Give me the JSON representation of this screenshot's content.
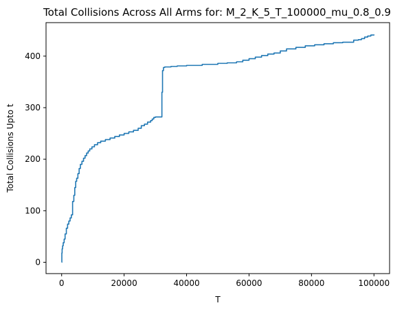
{
  "chart_data": {
    "type": "line",
    "title": "Total Collisions Across All Arms for: M_2_K_5_T_100000_mu_0.8_0.9",
    "xlabel": "T",
    "ylabel": "Total Collisions Upto t",
    "xlim": [
      -5000,
      105000
    ],
    "ylim": [
      -22,
      465
    ],
    "xticks": [
      0,
      20000,
      40000,
      60000,
      80000,
      100000
    ],
    "yticks": [
      0,
      100,
      200,
      300,
      400
    ],
    "grid": false,
    "legend": "none",
    "colors": {
      "line": "#1f77b4"
    },
    "series": [
      {
        "x": [
          0,
          60,
          150,
          300,
          500,
          800,
          1100,
          1500,
          1900,
          2300,
          2700,
          3100,
          3500,
          3900,
          4200,
          4500,
          4800,
          5200,
          5600,
          6000,
          6500,
          7000,
          7500,
          8000,
          8500,
          9000,
          9700,
          10500,
          11500,
          12500,
          14000,
          15500,
          17000,
          18500,
          20000,
          21500,
          23000,
          24500,
          25500,
          26500,
          27500,
          28500,
          29000,
          29500,
          30000,
          31000,
          32000,
          32100,
          32300,
          32600,
          33000,
          35000,
          37000,
          40000,
          45000,
          50000,
          53000,
          56000,
          58000,
          60000,
          62000,
          64000,
          66000,
          68000,
          70000,
          72000,
          75000,
          78000,
          81000,
          84000,
          87000,
          90000,
          93000,
          93500,
          95000,
          96000,
          97000,
          98000,
          99000,
          100000
        ],
        "y": [
          0,
          18,
          26,
          32,
          38,
          45,
          55,
          66,
          74,
          80,
          86,
          92,
          118,
          130,
          145,
          157,
          163,
          172,
          182,
          190,
          196,
          202,
          207,
          212,
          216,
          220,
          224,
          228,
          232,
          235,
          238,
          241,
          244,
          247,
          250,
          253,
          256,
          260,
          265,
          268,
          272,
          275,
          278,
          281,
          282,
          282,
          282,
          330,
          372,
          378,
          379,
          380,
          381,
          382,
          384,
          386,
          387,
          389,
          392,
          395,
          398,
          401,
          404,
          406,
          410,
          414,
          417,
          420,
          422,
          424,
          426,
          427,
          427,
          431,
          432,
          434,
          437,
          439,
          441,
          442
        ]
      }
    ]
  }
}
